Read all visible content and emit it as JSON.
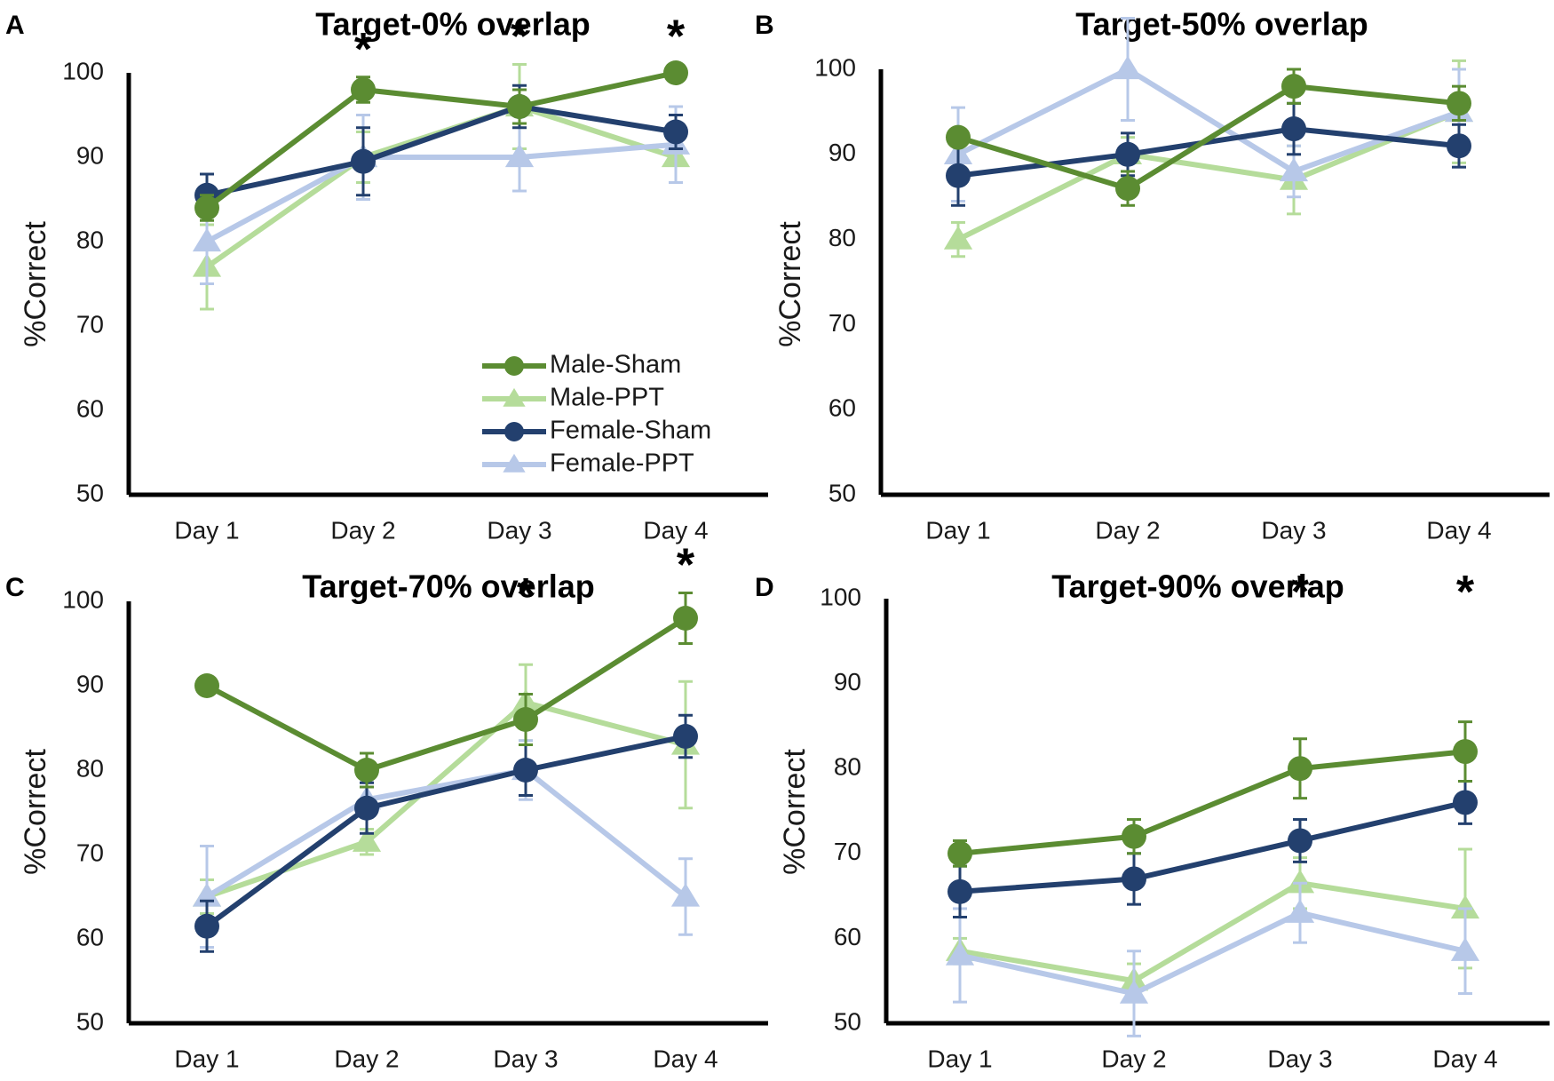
{
  "colors": {
    "Male-Sham": "#5b8c32",
    "Male-PPT": "#b5dc9a",
    "Female-Sham": "#23406e",
    "Female-PPT": "#b7c8e8"
  },
  "legend": [
    "Male-Sham",
    "Male-PPT",
    "Female-Sham",
    "Female-PPT"
  ],
  "chart_data": [
    {
      "type": "line",
      "panel": "A",
      "title": "Target-0% overlap",
      "categories": [
        "Day 1",
        "Day 2",
        "Day 3",
        "Day 4"
      ],
      "ylabel": "%Correct",
      "ylim": [
        50,
        100
      ],
      "yticks": [
        "50",
        "60",
        "70",
        "80",
        "90",
        "100"
      ],
      "significant": [
        "Day 2",
        "Day 3",
        "Day 4"
      ],
      "series": [
        {
          "name": "Male-Sham",
          "marker": "circle",
          "values": [
            84,
            98,
            96,
            100
          ],
          "errors": [
            1.5,
            1.5,
            2,
            1
          ]
        },
        {
          "name": "Male-PPT",
          "marker": "triangle",
          "values": [
            77,
            90,
            96,
            90
          ],
          "errors": [
            5,
            3,
            5,
            3
          ]
        },
        {
          "name": "Female-Sham",
          "marker": "circle",
          "values": [
            85.5,
            89.5,
            96,
            93
          ],
          "errors": [
            2.5,
            4,
            2.5,
            2
          ]
        },
        {
          "name": "Female-PPT",
          "marker": "triangle",
          "values": [
            80,
            90,
            90,
            91.5
          ],
          "errors": [
            5,
            5,
            4,
            4.5
          ]
        }
      ]
    },
    {
      "type": "line",
      "panel": "B",
      "title": "Target-50% overlap",
      "categories": [
        "Day 1",
        "Day 2",
        "Day 3",
        "Day 4"
      ],
      "ylabel": "%Correct",
      "ylim": [
        50,
        100
      ],
      "yticks": [
        "50",
        "60",
        "70",
        "80",
        "90",
        "100"
      ],
      "significant": [],
      "series": [
        {
          "name": "Male-Sham",
          "marker": "circle",
          "values": [
            92,
            86,
            98,
            96
          ],
          "errors": [
            1,
            2,
            2,
            2
          ]
        },
        {
          "name": "Male-PPT",
          "marker": "triangle",
          "values": [
            80,
            90,
            87,
            95
          ],
          "errors": [
            2,
            2,
            4,
            6
          ]
        },
        {
          "name": "Female-Sham",
          "marker": "circle",
          "values": [
            87.5,
            90,
            93,
            91
          ],
          "errors": [
            3.5,
            2.5,
            3,
            2.5
          ]
        },
        {
          "name": "Female-PPT",
          "marker": "triangle",
          "values": [
            90,
            100,
            88,
            95
          ],
          "errors": [
            5.5,
            6,
            3,
            5
          ]
        }
      ]
    },
    {
      "type": "line",
      "panel": "C",
      "title": "Target-70% overlap",
      "categories": [
        "Day 1",
        "Day 2",
        "Day 3",
        "Day 4"
      ],
      "ylabel": "%Correct",
      "ylim": [
        50,
        100
      ],
      "yticks": [
        "50",
        "60",
        "70",
        "80",
        "90",
        "100"
      ],
      "significant": [
        "Day 3",
        "Day 4"
      ],
      "series": [
        {
          "name": "Male-Sham",
          "marker": "circle",
          "values": [
            90,
            80,
            86,
            98
          ],
          "errors": [
            1,
            2,
            3,
            3
          ]
        },
        {
          "name": "Male-PPT",
          "marker": "triangle",
          "values": [
            65,
            71.5,
            88,
            83
          ],
          "errors": [
            2,
            1.5,
            4.5,
            7.5
          ]
        },
        {
          "name": "Female-Sham",
          "marker": "circle",
          "values": [
            61.5,
            75.5,
            80,
            84
          ],
          "errors": [
            3,
            3,
            3,
            2.5
          ]
        },
        {
          "name": "Female-PPT",
          "marker": "triangle",
          "values": [
            65,
            76.5,
            80,
            65
          ],
          "errors": [
            6,
            2,
            3.5,
            4.5
          ]
        }
      ]
    },
    {
      "type": "line",
      "panel": "D",
      "title": "Target-90% overlap",
      "categories": [
        "Day 1",
        "Day 2",
        "Day 3",
        "Day 4"
      ],
      "ylabel": "%Correct",
      "ylim": [
        50,
        100
      ],
      "yticks": [
        "50",
        "60",
        "70",
        "80",
        "90",
        "100"
      ],
      "significant": [
        "Day 3",
        "Day 4"
      ],
      "series": [
        {
          "name": "Male-Sham",
          "marker": "circle",
          "values": [
            70,
            72,
            80,
            82
          ],
          "errors": [
            1.5,
            2,
            3.5,
            3.5
          ]
        },
        {
          "name": "Male-PPT",
          "marker": "triangle",
          "values": [
            58.5,
            55,
            66.5,
            63.5
          ],
          "errors": [
            1.5,
            2,
            3,
            7
          ]
        },
        {
          "name": "Female-Sham",
          "marker": "circle",
          "values": [
            65.5,
            67,
            71.5,
            76
          ],
          "errors": [
            3,
            3,
            2.5,
            2.5
          ]
        },
        {
          "name": "Female-PPT",
          "marker": "triangle",
          "values": [
            58,
            53.5,
            63,
            58.5
          ],
          "errors": [
            5.5,
            5,
            3.5,
            5
          ]
        }
      ]
    }
  ]
}
